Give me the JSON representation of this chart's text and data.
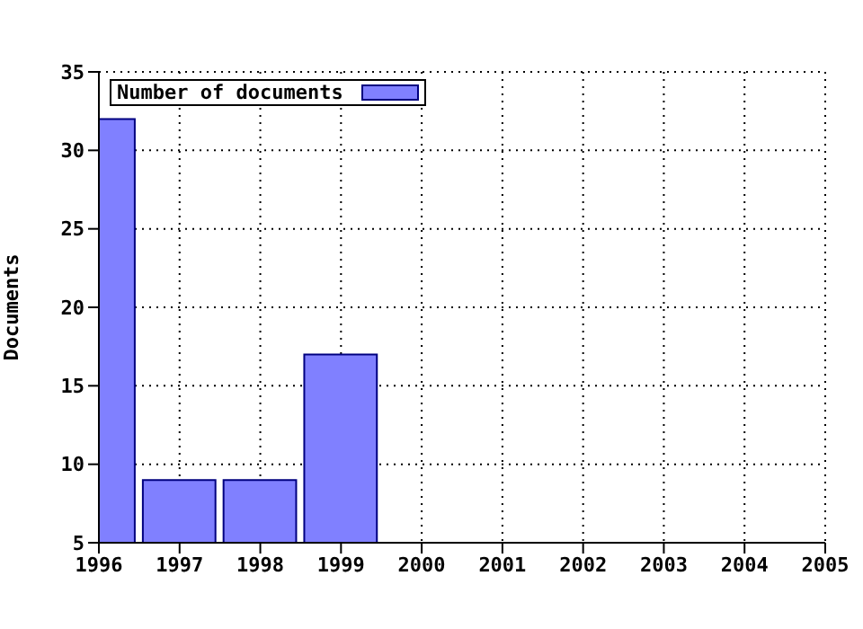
{
  "chart_data": {
    "type": "bar",
    "ylabel": "Documents",
    "x": [
      1996,
      1997,
      1998,
      1999
    ],
    "series": [
      {
        "name": "Number of documents",
        "color": "#8080ff",
        "values": [
          32,
          9,
          9,
          17
        ]
      }
    ],
    "xlim": [
      1996,
      2005
    ],
    "xticks": [
      1996,
      1997,
      1998,
      1999,
      2000,
      2001,
      2002,
      2003,
      2004,
      2005
    ],
    "ylim": [
      5,
      35
    ],
    "yticks": [
      5,
      10,
      15,
      20,
      25,
      30,
      35
    ],
    "grid": true,
    "legend": "top left"
  }
}
